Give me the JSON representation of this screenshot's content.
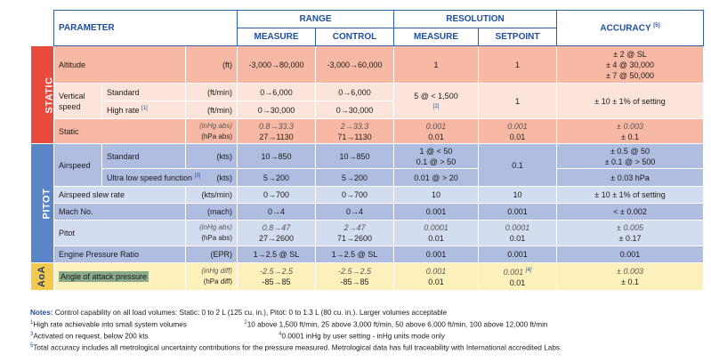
{
  "header": {
    "parameter": "PARAMETER",
    "range": "RANGE",
    "resolution": "RESOLUTION",
    "accuracy": "ACCURACY",
    "accuracy_note": "[5]",
    "measure": "MEASURE",
    "control": "CONTROL",
    "setpoint": "SETPOINT"
  },
  "sections": {
    "static": "STATIC",
    "pitot": "PITOT",
    "aoa": "AoA"
  },
  "rows": {
    "altitude": {
      "label": "Altitude",
      "unit": "(ft)",
      "measure": "-3,000→80,000",
      "control": "-3,000→60,000",
      "res_measure": "1",
      "res_setpoint": "1",
      "accuracy": [
        "± 2 @ SL",
        "± 4 @ 30,000",
        "± 7 @ 50,000"
      ]
    },
    "vertical": {
      "label1": "Vertical",
      "label2": "speed",
      "std_label": "Standard",
      "std_unit": "(ft/min)",
      "std_measure": "0→6,000",
      "std_control": "0→6,000",
      "hr_label": "High rate",
      "hr_note": "[1]",
      "hr_unit": "(ft/min)",
      "hr_measure": "0→30,000",
      "hr_control": "0→30,000",
      "res_measure": "5 @ < 1,500",
      "res_measure_note": "[2]",
      "res_setpoint": "1",
      "accuracy": "± 10 ± 1% of setting"
    },
    "static": {
      "label": "Static",
      "unit1": "(inHg abs)",
      "unit2": "(hPa abs)",
      "measure1": "0.8→33.3",
      "measure2": "27→1130",
      "control1": "2→33.3",
      "control2": "71→1130",
      "res_m1": "0.001",
      "res_m2": "0.01",
      "res_s1": "0.001",
      "res_s2": "0.01",
      "acc1": "± 0.003",
      "acc2": "± 0.1"
    },
    "airspeed": {
      "label": "Airspeed",
      "std_label": "Standard",
      "std_unit": "(kts)",
      "std_measure": "10→850",
      "std_control": "10→850",
      "std_res1": "1 @ < 50",
      "std_res2": "0.1 @ > 50",
      "std_acc1": "± 0.5 @ 50",
      "std_acc2": "± 0.1 @ > 500",
      "ul_label": "Ultra low speed function",
      "ul_note": "[3]",
      "ul_unit": "(kts)",
      "ul_measure": "5→200",
      "ul_control": "5→200",
      "ul_res": "0.01 @ > 20",
      "ul_acc": "± 0.03 hPa",
      "res_setpoint": "0.1"
    },
    "slew": {
      "label": "Airspeed slew rate",
      "unit": "(kts/min)",
      "measure": "0→700",
      "control": "0→700",
      "res_measure": "10",
      "res_setpoint": "10",
      "accuracy": "± 10 ± 1% of setting"
    },
    "mach": {
      "label": "Mach No.",
      "unit": "(mach)",
      "measure": "0→4",
      "control": "0→4",
      "res_measure": "0.001",
      "res_setpoint": "0.001",
      "accuracy": "< ± 0.002"
    },
    "pitot": {
      "label": "Pitot",
      "unit1": "(inHg abs)",
      "unit2": "(hPa abs)",
      "measure1": "0.8→47",
      "measure2": "27→2600",
      "control1": "2→47",
      "control2": "71→2600",
      "res_m1": "0.0001",
      "res_m2": "0.01",
      "res_s1": "0.0001",
      "res_s2": "0.01",
      "acc1": "± 0.005",
      "acc2": "± 0.17"
    },
    "epr": {
      "label": "Engine Pressure Ratio",
      "unit": "(EPR)",
      "measure": "1→2.5 @ SL",
      "control": "1→2.5 @ SL",
      "res_measure": "0.001",
      "res_setpoint": "0.001",
      "accuracy": "0.001"
    },
    "aoa": {
      "label": "Angle of attack pressure",
      "unit1": "(inHg diff)",
      "unit2": "(hPa diff)",
      "measure1": "-2.5→2.5",
      "measure2": "-85→85",
      "control1": "-2.5→2.5",
      "control2": "-85→85",
      "res_m1": "0.001",
      "res_m2": "0.01",
      "res_s1": "0.001",
      "res_s1_note": "[4]",
      "res_s2": "0.01",
      "acc1": "± 0.003",
      "acc2": "± 0.1"
    }
  },
  "notes": {
    "title": "Notes:",
    "line0": "Control capability on all load volumes: Static: 0 to 2 L (125 cu. in.), Pitot: 0 to 1.3 L (80 cu. in.). Larger volumes acceptable",
    "n1_num": "1",
    "n1": "High rate achievable into small system volumes",
    "n2_num": "2",
    "n2": "10 above 1,500 ft/min, 25 above 3,000 ft/min, 50 above 6,000 ft/min, 100 above 12,000 ft/min",
    "n3_num": "3",
    "n3": "Activated on request, below 200 kts",
    "n4_num": "4",
    "n4": "0.0001 inHg by user setting - inHg units mode only",
    "n5_num": "5",
    "n5": "Total accuracy includes all metrological uncertainty contributions for the pressure measured. Metrological data has full traceability with International accredited Labs."
  },
  "colors": {
    "static": "#e84a3c",
    "pitot": "#5a86c8",
    "aoa": "#f2c94c",
    "header_text": "#1f4e9a"
  }
}
